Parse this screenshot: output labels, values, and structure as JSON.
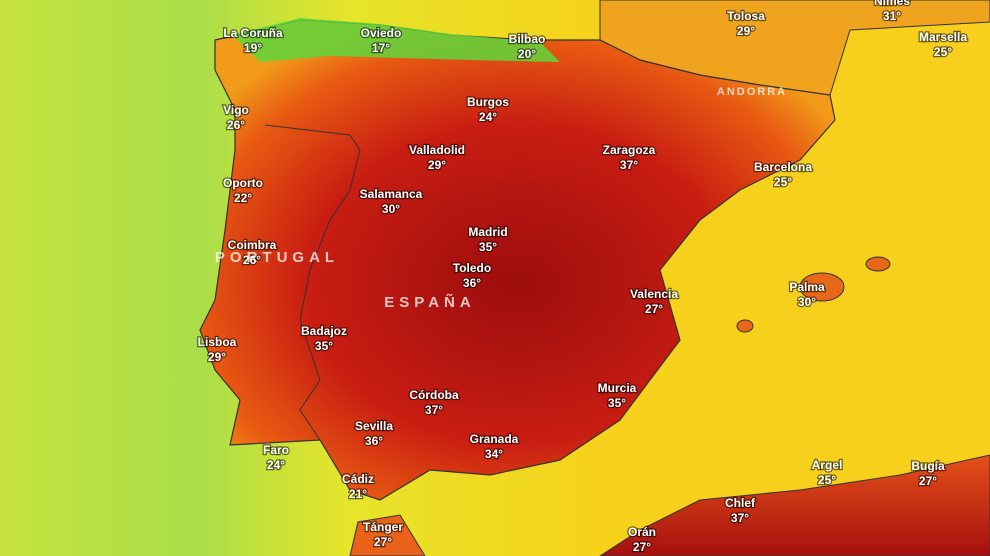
{
  "map": {
    "cities": [
      {
        "name": "La Coruña",
        "temp": "19°"
      },
      {
        "name": "Oviedo",
        "temp": "17°"
      },
      {
        "name": "Bilbao",
        "temp": "20°"
      },
      {
        "name": "Tolosa",
        "temp": "29°"
      },
      {
        "name": "Nîmes",
        "temp": "31°"
      },
      {
        "name": "Marsella",
        "temp": "25°"
      },
      {
        "name": "Vigo",
        "temp": "26°"
      },
      {
        "name": "Burgos",
        "temp": "24°"
      },
      {
        "name": "Valladolid",
        "temp": "29°"
      },
      {
        "name": "Zaragoza",
        "temp": "37°"
      },
      {
        "name": "Barcelona",
        "temp": "25°"
      },
      {
        "name": "Oporto",
        "temp": "22°"
      },
      {
        "name": "Salamanca",
        "temp": "30°"
      },
      {
        "name": "Madrid",
        "temp": "35°"
      },
      {
        "name": "Coimbra",
        "temp": "26°"
      },
      {
        "name": "Toledo",
        "temp": "36°"
      },
      {
        "name": "Palma",
        "temp": "30°"
      },
      {
        "name": "Valencia",
        "temp": "27°"
      },
      {
        "name": "Badajoz",
        "temp": "35°"
      },
      {
        "name": "Lisboa",
        "temp": "29°"
      },
      {
        "name": "Murcia",
        "temp": "35°"
      },
      {
        "name": "Córdoba",
        "temp": "37°"
      },
      {
        "name": "Sevilla",
        "temp": "36°"
      },
      {
        "name": "Granada",
        "temp": "34°"
      },
      {
        "name": "Faro",
        "temp": "24°"
      },
      {
        "name": "Argel",
        "temp": "25°"
      },
      {
        "name": "Bugía",
        "temp": "27°"
      },
      {
        "name": "Cádiz",
        "temp": "21°"
      },
      {
        "name": "Chlef",
        "temp": "37°"
      },
      {
        "name": "Tánger",
        "temp": "27°"
      },
      {
        "name": "Orán",
        "temp": "27°"
      }
    ],
    "countries": [
      "PORTUGAL",
      "ESPAÑA",
      "ANDORRA"
    ]
  }
}
